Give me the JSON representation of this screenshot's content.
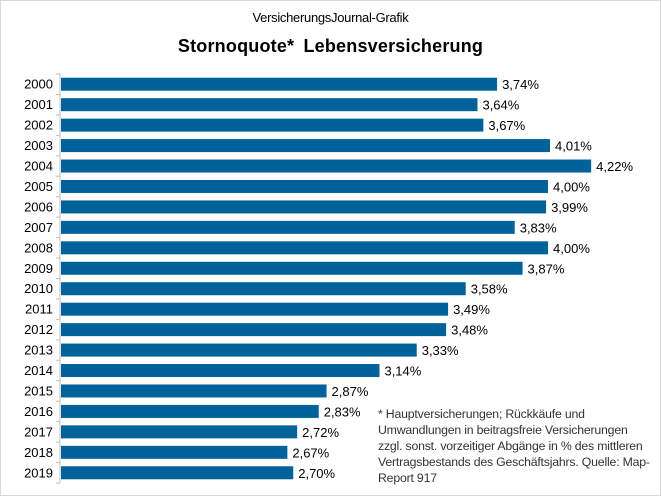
{
  "header": {
    "subtitle": "VersicherungsJournal-Grafik"
  },
  "chart_data": {
    "type": "bar",
    "orientation": "horizontal",
    "title": "Stornoquote*  Lebensversicherung",
    "categories": [
      "2000",
      "2001",
      "2002",
      "2003",
      "2004",
      "2005",
      "2006",
      "2007",
      "2008",
      "2009",
      "2010",
      "2011",
      "2012",
      "2013",
      "2014",
      "2015",
      "2016",
      "2017",
      "2018",
      "2019"
    ],
    "values": [
      3.74,
      3.64,
      3.67,
      4.01,
      4.22,
      4.0,
      3.99,
      3.83,
      4.0,
      3.87,
      3.58,
      3.49,
      3.48,
      3.33,
      3.14,
      2.87,
      2.83,
      2.72,
      2.67,
      2.7
    ],
    "labels": [
      "3,74%",
      "3,64%",
      "3,67%",
      "4,01%",
      "4,22%",
      "4,00%",
      "3,99%",
      "3,83%",
      "4,00%",
      "3,87%",
      "3,58%",
      "3,49%",
      "3,48%",
      "3,33%",
      "3,14%",
      "2,87%",
      "2,83%",
      "2,72%",
      "2,67%",
      "2,70%"
    ],
    "xlim": [
      1.5,
      4.5
    ],
    "grid": false,
    "bar_color": "#00629b",
    "footnote": "* Hauptversicherungen;  Rückkäufe und Umwandlungen  in beitragsfreie  Versicherungen zzgl. sonst. vorzeitiger  Abgänge  in % des mittleren Vertragsbestands  des Geschäftsjahrs.  Quelle:  Map-Report  917"
  }
}
